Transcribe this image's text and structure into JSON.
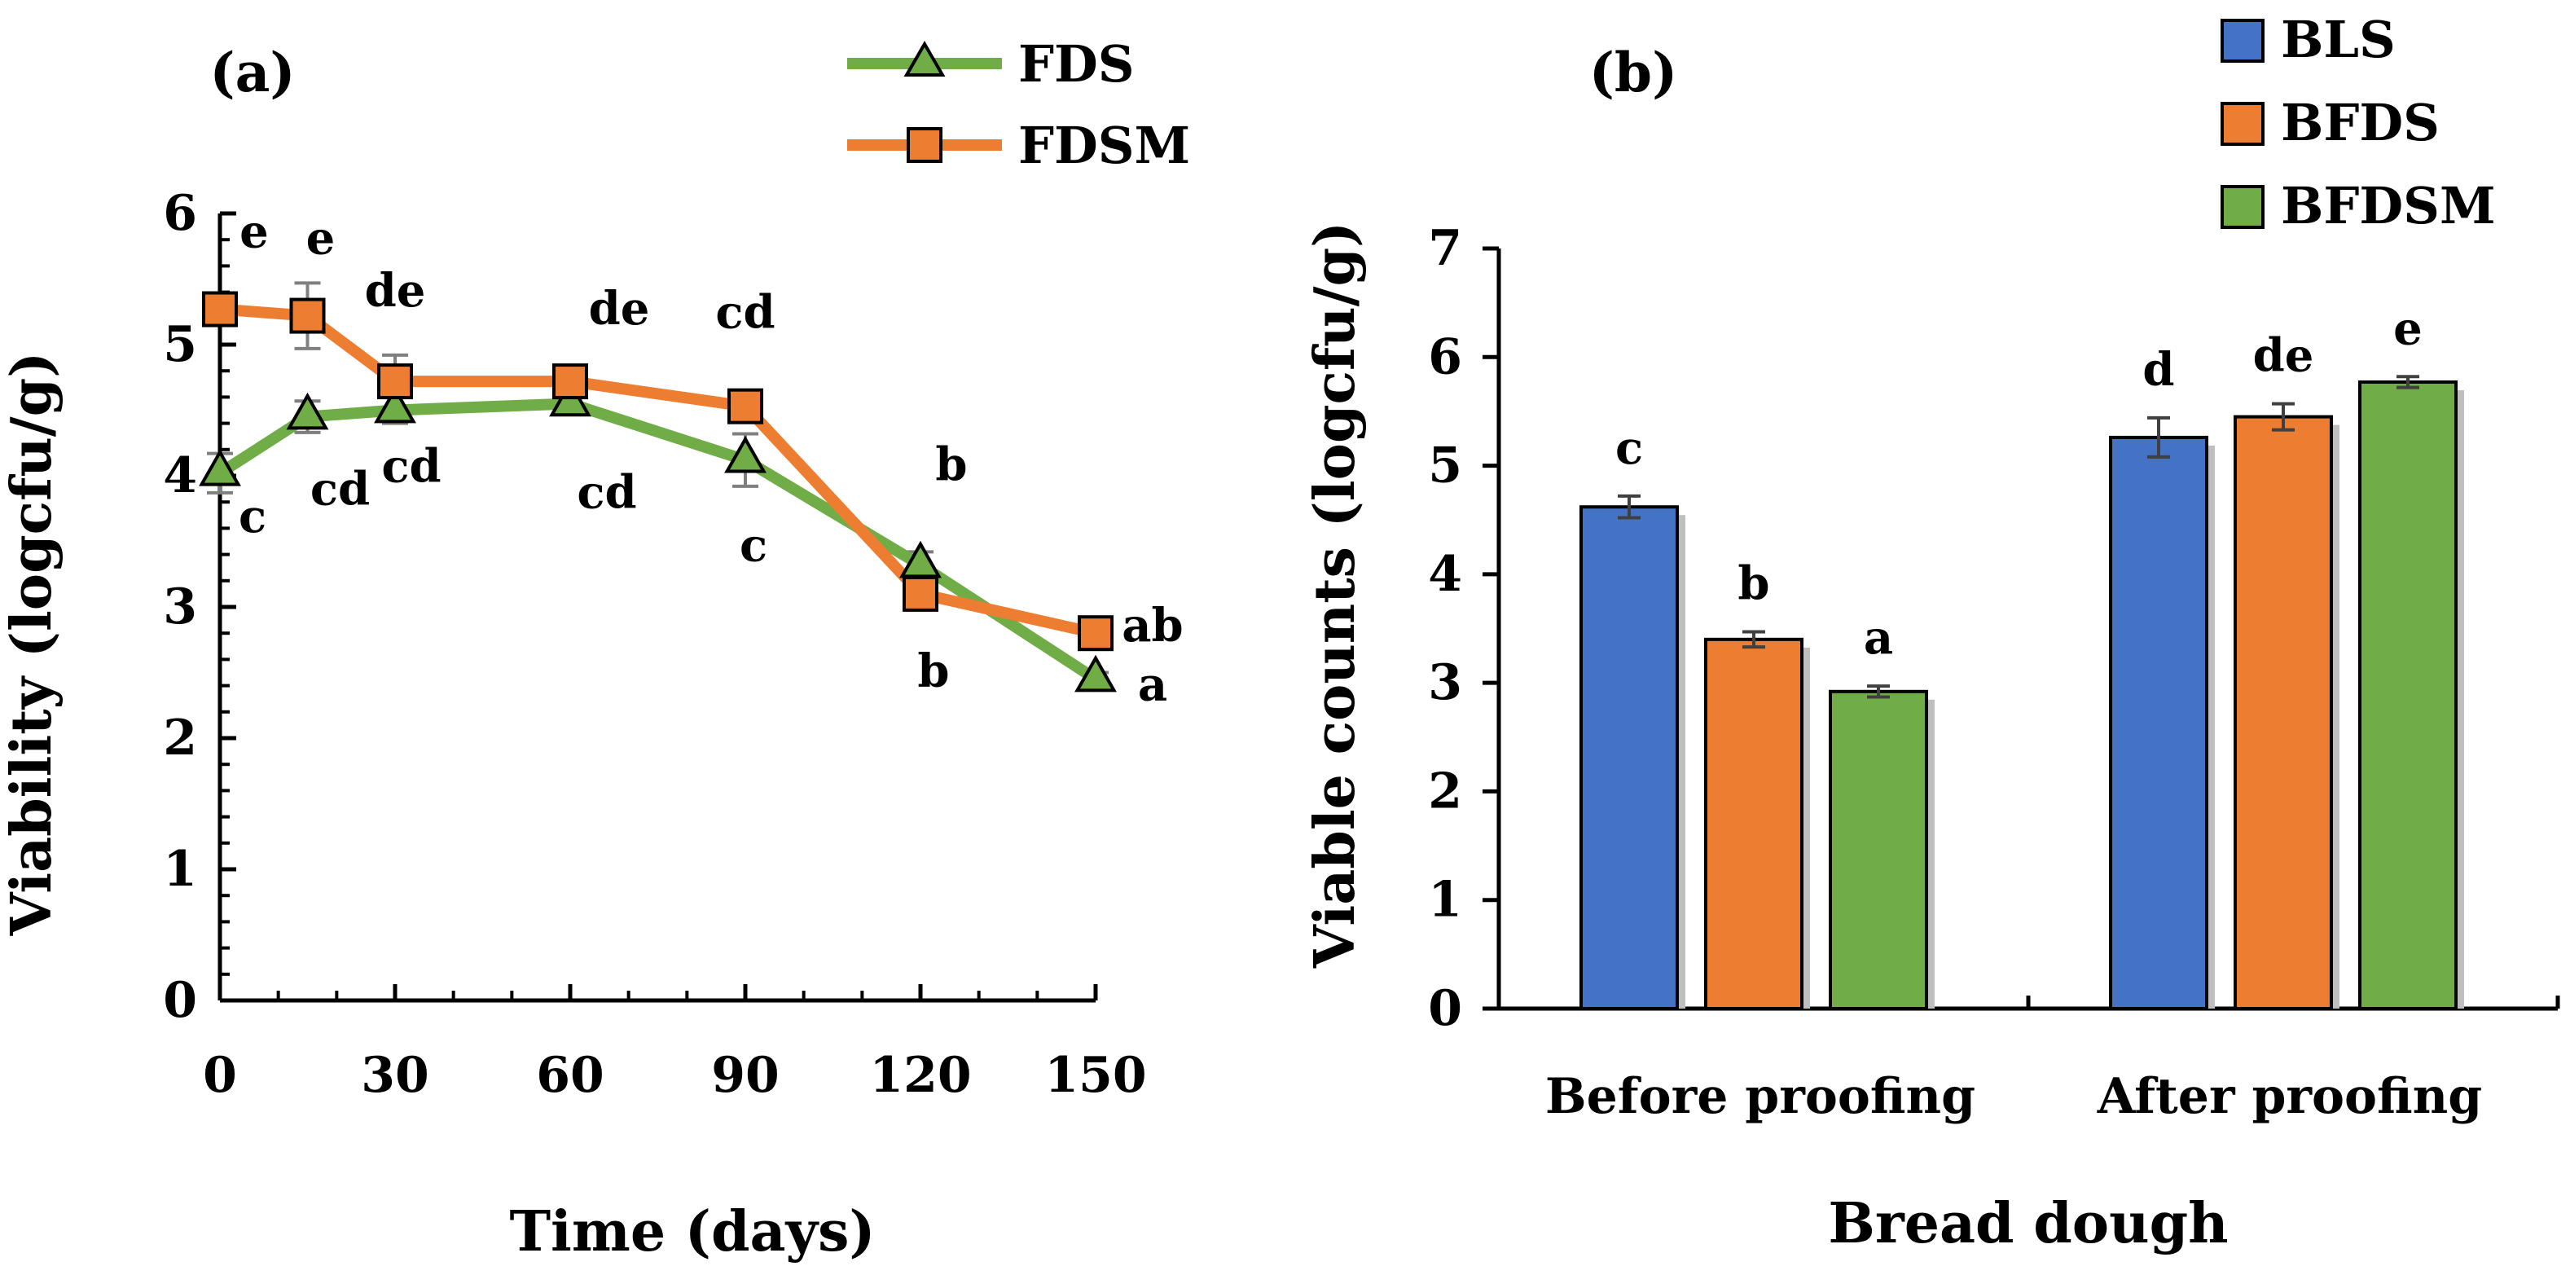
{
  "chart_data": [
    {
      "panel": "(a)",
      "type": "line",
      "title": "",
      "xlabel": "Time (days)",
      "ylabel": "Viability (logcfu/g)",
      "xlim": [
        0,
        150
      ],
      "ylim": [
        0,
        6
      ],
      "x_ticks": [
        0,
        30,
        60,
        90,
        120,
        150
      ],
      "x_tick_labels": [
        "0",
        "30",
        "60",
        "90",
        "120",
        "150"
      ],
      "y_ticks": [
        0,
        1,
        2,
        3,
        4,
        5,
        6
      ],
      "y_tick_labels": [
        "0",
        "1",
        "2",
        "3",
        "4",
        "5",
        "6"
      ],
      "x": [
        0,
        15,
        30,
        60,
        90,
        120,
        150
      ],
      "legend_position": "top-right",
      "series": [
        {
          "name": "FDS",
          "marker": "triangle",
          "color": "#70AD47",
          "values": [
            4.02,
            4.45,
            4.5,
            4.55,
            4.12,
            3.32,
            2.45
          ],
          "errors": [
            0.15,
            0.12,
            0.1,
            0.08,
            0.2,
            0.1,
            0.05
          ],
          "labels": [
            "c",
            "cd",
            "cd",
            "cd",
            "c",
            "b",
            "a"
          ]
        },
        {
          "name": "FDSM",
          "marker": "square",
          "color": "#ED7D31",
          "values": [
            5.27,
            5.22,
            4.72,
            4.72,
            4.53,
            3.1,
            2.8
          ],
          "errors": [
            0.08,
            0.25,
            0.2,
            0.08,
            0.1,
            0.12,
            0.06
          ],
          "labels": [
            "e",
            "e",
            "de",
            "de",
            "cd",
            "b",
            "ab"
          ]
        }
      ]
    },
    {
      "panel": "(b)",
      "type": "bar",
      "title": "",
      "xlabel": "Bread dough",
      "ylabel": "Viable counts (logcfu/g)",
      "ylim": [
        0,
        7
      ],
      "y_ticks": [
        0,
        1,
        2,
        3,
        4,
        5,
        6,
        7
      ],
      "y_tick_labels": [
        "0",
        "1",
        "2",
        "3",
        "4",
        "5",
        "6",
        "7"
      ],
      "categories": [
        "Before proofing",
        "After proofing"
      ],
      "legend_position": "top-right",
      "series": [
        {
          "name": "BLS",
          "color": "#4472C4",
          "values": [
            4.62,
            5.26
          ],
          "errors": [
            0.1,
            0.18
          ],
          "labels": [
            "c",
            "d"
          ]
        },
        {
          "name": "BFDS",
          "color": "#ED7D31",
          "values": [
            3.4,
            5.45
          ],
          "errors": [
            0.07,
            0.12
          ],
          "labels": [
            "b",
            "de"
          ]
        },
        {
          "name": "BFDSM",
          "color": "#70AD47",
          "values": [
            2.92,
            5.77
          ],
          "errors": [
            0.05,
            0.05
          ],
          "labels": [
            "a",
            "e"
          ]
        }
      ]
    }
  ]
}
